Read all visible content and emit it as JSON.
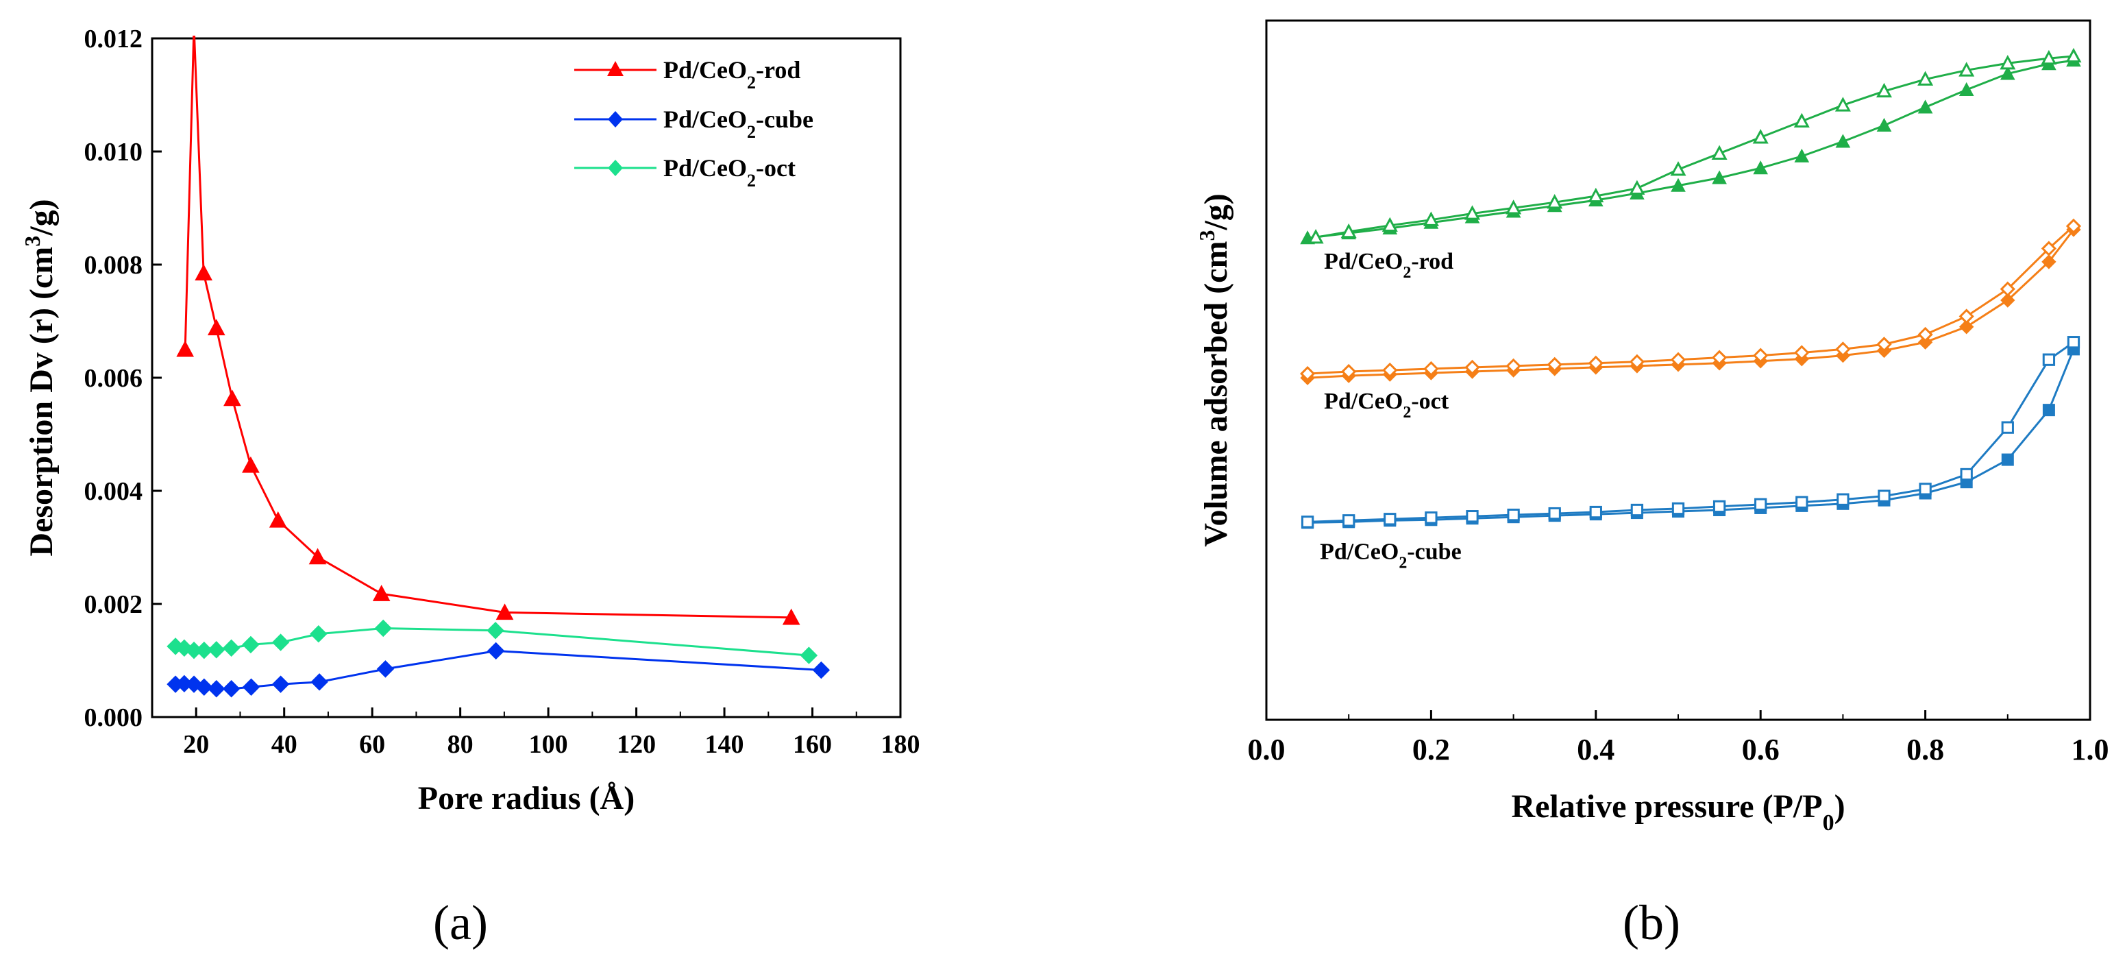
{
  "chart_data": [
    {
      "panel": "(a)",
      "type": "line",
      "title": "",
      "xlabel": "Pore radius (Å)",
      "ylabel_main": "Desorption Dv (r) (cm",
      "ylabel_sup": "3",
      "ylabel_end": "/g)",
      "xlim": [
        10,
        180
      ],
      "ylim": [
        0,
        0.012
      ],
      "xticks": [
        20,
        40,
        60,
        80,
        100,
        120,
        140,
        160,
        180
      ],
      "xtick_labels": [
        "20",
        "40",
        "60",
        "80",
        "100",
        "120",
        "140",
        "160",
        "180"
      ],
      "yticks": [
        0,
        0.002,
        0.004,
        0.006,
        0.008,
        0.01,
        0.012
      ],
      "ytick_labels": [
        "0.000",
        "0.002",
        "0.004",
        "0.006",
        "0.008",
        "0.010",
        "0.012"
      ],
      "legend_position": "top-right",
      "series": [
        {
          "name": "Pd/CeO2-rod",
          "legend_main": "Pd/CeO",
          "legend_sub": "2",
          "legend_end": "-rod",
          "color": "#ff0000",
          "marker": "triangle",
          "x": [
            17.5,
            19.5,
            21.7,
            24.6,
            28.2,
            32.4,
            38.6,
            47.6,
            62.1,
            90.1,
            155.2
          ],
          "y": [
            0.0065,
            0.0122,
            0.00785,
            0.00688,
            0.00563,
            0.00445,
            0.00348,
            0.00283,
            0.00218,
            0.00185,
            0.00176
          ]
        },
        {
          "name": "Pd/CeO2-cube",
          "legend_main": "Pd/CeO",
          "legend_sub": "2",
          "legend_end": "-cube",
          "color": "#0033ee",
          "marker": "diamond",
          "x": [
            15.3,
            17.3,
            19.5,
            21.8,
            24.6,
            28.0,
            32.5,
            39.2,
            48.0,
            63.0,
            88.1,
            162.0
          ],
          "y": [
            0.00058,
            0.00059,
            0.00058,
            0.00053,
            0.0005,
            0.0005,
            0.00053,
            0.00058,
            0.00062,
            0.00085,
            0.00117,
            0.00083
          ]
        },
        {
          "name": "Pd/CeO2-oct",
          "legend_main": "Pd/CeO",
          "legend_sub": "2",
          "legend_end": "-oct",
          "color": "#1ce08d",
          "marker": "diamond",
          "x": [
            15.3,
            17.3,
            19.5,
            21.8,
            24.6,
            28.0,
            32.4,
            39.2,
            47.8,
            62.5,
            88.0,
            159.2
          ],
          "y": [
            0.00125,
            0.00122,
            0.00118,
            0.00118,
            0.00119,
            0.00122,
            0.00128,
            0.00132,
            0.00147,
            0.00157,
            0.00153,
            0.00109
          ]
        }
      ]
    },
    {
      "panel": "(b)",
      "type": "line",
      "title": "",
      "xlabel_main": "Relative pressure (P/P",
      "xlabel_sub": "0",
      "xlabel_end": ")",
      "ylabel_main": "Volume adsorbed (cm",
      "ylabel_sup": "3",
      "ylabel_end": "/g)",
      "xlim": [
        0,
        1.0
      ],
      "ylim": [
        0,
        100
      ],
      "y_tick_labels_shown": false,
      "xticks": [
        0.0,
        0.2,
        0.4,
        0.6,
        0.8,
        1.0
      ],
      "xtick_labels": [
        "0.0",
        "0.2",
        "0.4",
        "0.6",
        "0.8",
        "1.0"
      ],
      "series": [
        {
          "name": "Pd/CeO2-rod",
          "label_main": "Pd/CeO",
          "label_sub": "2",
          "label_end": "-rod",
          "label_x": 0.07,
          "label_y": 64.5,
          "color": "#1fae48",
          "marker": "triangle",
          "adsorption": {
            "x": [
              0.05,
              0.1,
              0.15,
              0.2,
              0.25,
              0.3,
              0.35,
              0.4,
              0.45,
              0.5,
              0.55,
              0.6,
              0.65,
              0.7,
              0.75,
              0.8,
              0.85,
              0.9,
              0.95,
              0.98
            ],
            "y": [
              68.9,
              69.6,
              70.3,
              71.1,
              71.9,
              72.7,
              73.5,
              74.3,
              75.3,
              76.4,
              77.5,
              78.9,
              80.6,
              82.7,
              85.0,
              87.6,
              90.1,
              92.4,
              93.8,
              94.3
            ]
          },
          "desorption": {
            "x": [
              0.06,
              0.1,
              0.15,
              0.2,
              0.25,
              0.3,
              0.35,
              0.4,
              0.45,
              0.5,
              0.55,
              0.6,
              0.65,
              0.7,
              0.75,
              0.8,
              0.85,
              0.9,
              0.95,
              0.98
            ],
            "y": [
              69.0,
              69.8,
              70.7,
              71.5,
              72.4,
              73.2,
              74.0,
              74.9,
              76.0,
              78.7,
              81.0,
              83.3,
              85.6,
              87.9,
              89.9,
              91.6,
              92.9,
              93.9,
              94.6,
              94.9
            ]
          }
        },
        {
          "name": "Pd/CeO2-oct",
          "label_main": "Pd/CeO",
          "label_sub": "2",
          "label_end": "-oct",
          "label_x": 0.07,
          "label_y": 44.5,
          "color": "#f57f17",
          "marker": "diamond",
          "adsorption": {
            "x": [
              0.05,
              0.1,
              0.15,
              0.2,
              0.25,
              0.3,
              0.35,
              0.4,
              0.45,
              0.5,
              0.55,
              0.6,
              0.65,
              0.7,
              0.75,
              0.8,
              0.85,
              0.9,
              0.95,
              0.98
            ],
            "y": [
              48.9,
              49.2,
              49.4,
              49.6,
              49.8,
              50.0,
              50.2,
              50.4,
              50.6,
              50.8,
              51.0,
              51.3,
              51.6,
              52.1,
              52.8,
              54.0,
              56.2,
              60.0,
              65.5,
              70.1
            ]
          },
          "desorption": {
            "x": [
              0.05,
              0.1,
              0.15,
              0.2,
              0.25,
              0.3,
              0.35,
              0.4,
              0.45,
              0.5,
              0.55,
              0.6,
              0.65,
              0.7,
              0.75,
              0.8,
              0.85,
              0.9,
              0.95,
              0.98
            ],
            "y": [
              49.5,
              49.8,
              50.0,
              50.2,
              50.4,
              50.6,
              50.8,
              51.0,
              51.2,
              51.5,
              51.8,
              52.1,
              52.5,
              53.0,
              53.7,
              55.1,
              57.7,
              61.6,
              67.4,
              70.6
            ]
          }
        },
        {
          "name": "Pd/CeO2-cube",
          "label_main": "Pd/CeO",
          "label_sub": "2",
          "label_end": "-cube",
          "label_x": 0.065,
          "label_y": 23.0,
          "color": "#1e7bc3",
          "marker": "square",
          "adsorption": {
            "x": [
              0.05,
              0.1,
              0.15,
              0.2,
              0.25,
              0.3,
              0.35,
              0.4,
              0.45,
              0.5,
              0.55,
              0.6,
              0.65,
              0.7,
              0.75,
              0.8,
              0.85,
              0.9,
              0.95,
              0.98
            ],
            "y": [
              28.2,
              28.3,
              28.5,
              28.6,
              28.8,
              29.0,
              29.2,
              29.4,
              29.6,
              29.8,
              30.0,
              30.3,
              30.6,
              30.9,
              31.4,
              32.4,
              34.0,
              37.2,
              44.3,
              53.0
            ]
          },
          "desorption": {
            "x": [
              0.05,
              0.1,
              0.15,
              0.2,
              0.25,
              0.3,
              0.35,
              0.4,
              0.45,
              0.5,
              0.55,
              0.6,
              0.65,
              0.7,
              0.75,
              0.8,
              0.85,
              0.9,
              0.95,
              0.98
            ],
            "y": [
              28.3,
              28.5,
              28.7,
              28.9,
              29.1,
              29.3,
              29.5,
              29.7,
              30.0,
              30.2,
              30.5,
              30.8,
              31.1,
              31.5,
              32.0,
              33.0,
              35.1,
              41.8,
              51.5,
              54.0
            ]
          }
        }
      ]
    }
  ]
}
